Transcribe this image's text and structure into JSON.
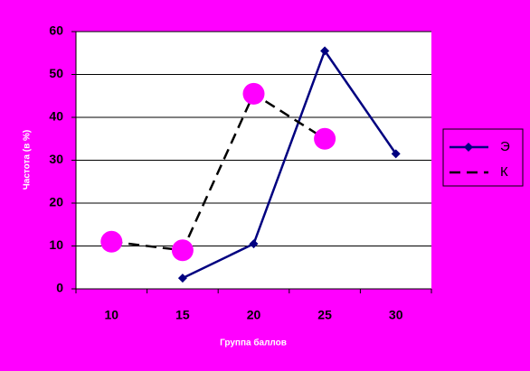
{
  "chart_data": {
    "type": "line",
    "x_label": "Группа баллов",
    "y_label": "Частота (в %)",
    "categories": [
      "10",
      "15",
      "20",
      "25",
      "30"
    ],
    "series": [
      {
        "name": "Э",
        "color": "#000080",
        "marker": "diamond",
        "dashed": false,
        "values": [
          null,
          2.5,
          10.5,
          55.5,
          31.5
        ]
      },
      {
        "name": "К",
        "color": "#000000",
        "marker": "circle",
        "marker_color": "#ff00ff",
        "dashed": true,
        "values": [
          11,
          9,
          45.5,
          35,
          null
        ]
      }
    ],
    "ylim": [
      0,
      60
    ],
    "yticks": [
      0,
      10,
      20,
      30,
      40,
      50,
      60
    ],
    "grid": true,
    "legend": "right"
  }
}
